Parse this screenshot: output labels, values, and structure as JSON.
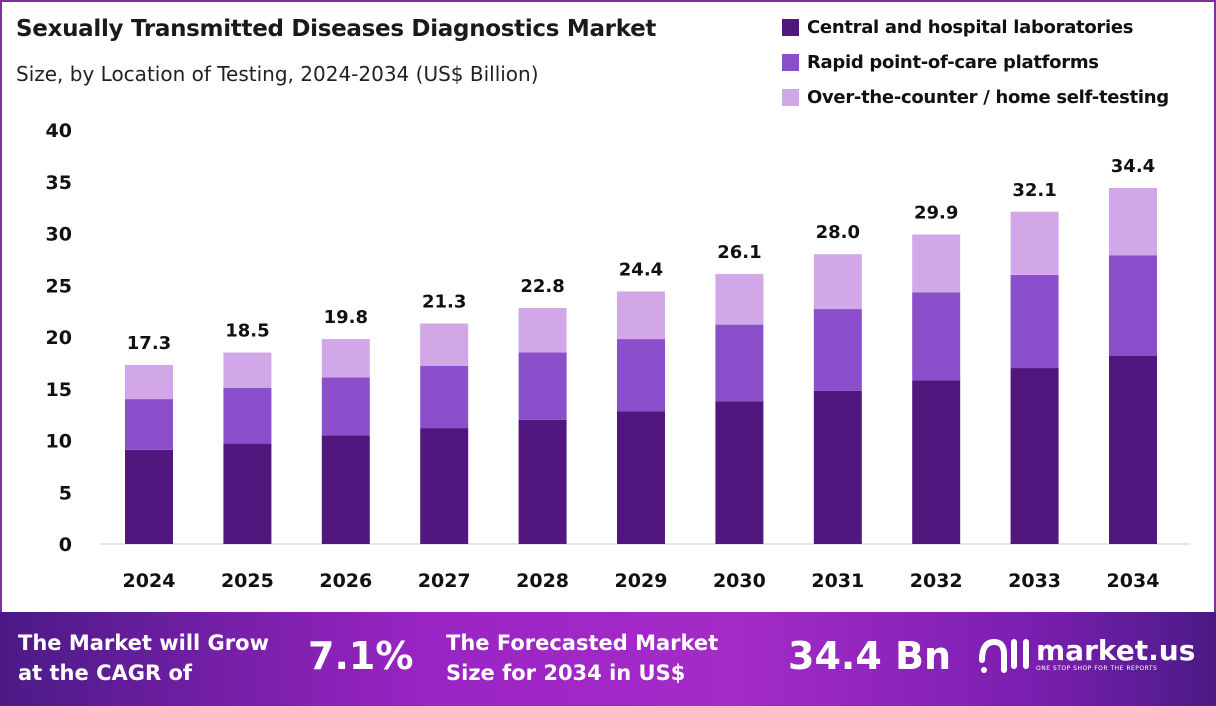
{
  "chart_data": {
    "type": "bar",
    "stacked": true,
    "title": "Sexually Transmitted Diseases Diagnostics Market",
    "subtitle": "Size, by Location of Testing, 2024-2034 (US$ Billion)",
    "xlabel": "",
    "ylabel": "",
    "ylim": [
      0,
      40
    ],
    "yticks": [
      "0",
      "5",
      "10",
      "15",
      "20",
      "25",
      "30",
      "35",
      "40"
    ],
    "grid": false,
    "legend_position": "top-right",
    "categories": [
      "2024",
      "2025",
      "2026",
      "2027",
      "2028",
      "2029",
      "2030",
      "2031",
      "2032",
      "2033",
      "2034"
    ],
    "series": [
      {
        "name": "Central and hospital laboratories",
        "color": "#52167f",
        "values": [
          9.1,
          9.7,
          10.5,
          11.2,
          12.0,
          12.8,
          13.8,
          14.8,
          15.8,
          17.0,
          18.2
        ]
      },
      {
        "name": "Rapid point-of-care platforms",
        "color": "#8b4fcb",
        "values": [
          4.9,
          5.4,
          5.6,
          6.0,
          6.5,
          7.0,
          7.4,
          7.9,
          8.5,
          9.0,
          9.7
        ]
      },
      {
        "name": "Over-the-counter / home self-testing",
        "color": "#d1a7e8",
        "values": [
          3.3,
          3.4,
          3.7,
          4.1,
          4.3,
          4.6,
          4.9,
          5.3,
          5.6,
          6.1,
          6.5
        ]
      }
    ],
    "totals": [
      "17.3",
      "18.5",
      "19.8",
      "21.3",
      "22.8",
      "24.4",
      "26.1",
      "28.0",
      "29.9",
      "32.1",
      "34.4"
    ]
  },
  "footer": {
    "cagr_text_1": "The Market will Grow",
    "cagr_text_2": "at the CAGR of",
    "cagr_value": "7.1%",
    "forecast_text_1": "The Forecasted Market",
    "forecast_text_2": "Size for 2034 in US$",
    "forecast_value": "34.4 Bn",
    "brand": "market.us",
    "tagline": "ONE STOP SHOP FOR THE REPORTS"
  }
}
